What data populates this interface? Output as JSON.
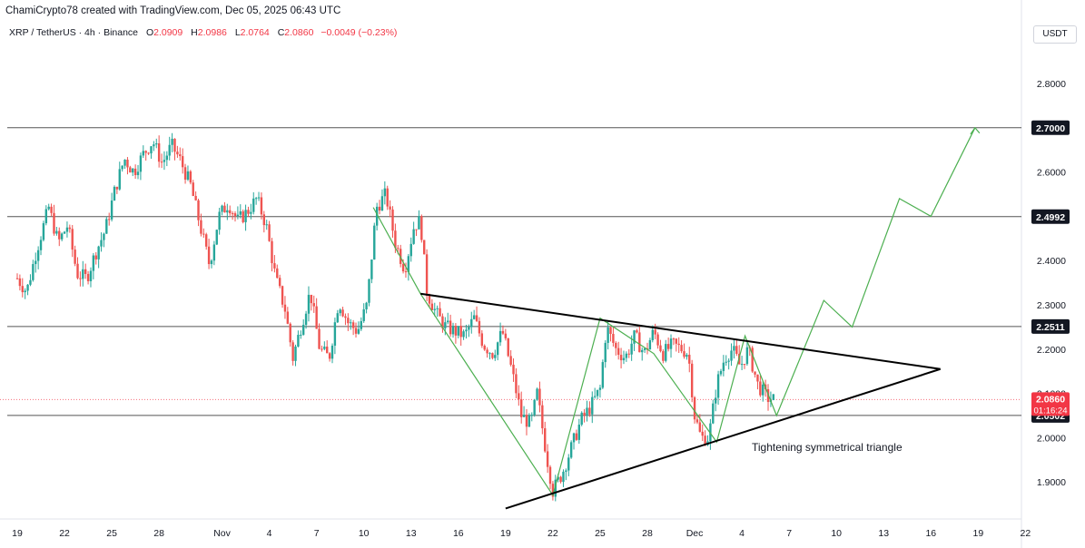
{
  "header": {
    "attribution": "ChamiCrypto78 created with TradingView.com, Dec 05, 2025 06:43 UTC"
  },
  "symbol": {
    "name": "XRP / TetherUS · 4h · Binance",
    "open_label": "O",
    "open": "2.0909",
    "high_label": "H",
    "high": "2.0986",
    "low_label": "L",
    "low": "2.0764",
    "close_label": "C",
    "close": "2.0860",
    "change": "−0.0049 (−0.23%)"
  },
  "currency": "USDT",
  "colors": {
    "up": "#26a69a",
    "down": "#ef5350",
    "projection": "#4caf50",
    "triangle": "#000000",
    "level_line": "#555555",
    "current_price": "#f23645"
  },
  "chart_data": {
    "type": "candlestick",
    "ylim": [
      1.83,
      2.87
    ],
    "y_ticks": [
      "2.8000",
      "2.6000",
      "2.5000",
      "2.4000",
      "2.3000",
      "2.2000",
      "2.1000",
      "2.0000",
      "1.9000"
    ],
    "x_ticks": [
      {
        "label": "19",
        "day": 0
      },
      {
        "label": "22",
        "day": 3
      },
      {
        "label": "25",
        "day": 6
      },
      {
        "label": "28",
        "day": 9
      },
      {
        "label": "Nov",
        "day": 13
      },
      {
        "label": "4",
        "day": 16
      },
      {
        "label": "7",
        "day": 19
      },
      {
        "label": "10",
        "day": 22
      },
      {
        "label": "13",
        "day": 25
      },
      {
        "label": "16",
        "day": 28
      },
      {
        "label": "19",
        "day": 31
      },
      {
        "label": "22",
        "day": 34
      },
      {
        "label": "25",
        "day": 37
      },
      {
        "label": "28",
        "day": 40
      },
      {
        "label": "Dec",
        "day": 43
      },
      {
        "label": "4",
        "day": 46
      },
      {
        "label": "7",
        "day": 49
      },
      {
        "label": "10",
        "day": 52
      },
      {
        "label": "13",
        "day": 55
      },
      {
        "label": "16",
        "day": 58
      },
      {
        "label": "19",
        "day": 61
      },
      {
        "label": "22",
        "day": 64
      }
    ],
    "horizontal_levels": [
      {
        "price": 2.7,
        "label": "2.7000"
      },
      {
        "price": 2.4992,
        "label": "2.4992"
      },
      {
        "price": 2.2511,
        "label": "2.2511"
      },
      {
        "price": 2.0502,
        "label": "2.0502"
      }
    ],
    "current_price": {
      "price": 2.086,
      "label": "2.0860",
      "countdown": "01:16:24"
    },
    "price_path": [
      [
        0,
        2.36
      ],
      [
        0.6,
        2.33
      ],
      [
        1.2,
        2.42
      ],
      [
        2.0,
        2.52
      ],
      [
        2.6,
        2.44
      ],
      [
        3.2,
        2.48
      ],
      [
        3.8,
        2.37
      ],
      [
        4.4,
        2.36
      ],
      [
        5.0,
        2.42
      ],
      [
        5.6,
        2.47
      ],
      [
        6.2,
        2.56
      ],
      [
        6.8,
        2.63
      ],
      [
        7.4,
        2.6
      ],
      [
        8.0,
        2.64
      ],
      [
        8.6,
        2.67
      ],
      [
        9.2,
        2.62
      ],
      [
        9.8,
        2.66
      ],
      [
        10.3,
        2.63
      ],
      [
        11.0,
        2.57
      ],
      [
        11.6,
        2.48
      ],
      [
        12.2,
        2.39
      ],
      [
        12.8,
        2.5
      ],
      [
        13.4,
        2.53
      ],
      [
        14.0,
        2.49
      ],
      [
        14.6,
        2.51
      ],
      [
        15.2,
        2.54
      ],
      [
        15.8,
        2.48
      ],
      [
        16.4,
        2.36
      ],
      [
        17.0,
        2.29
      ],
      [
        17.5,
        2.18
      ],
      [
        18.0,
        2.25
      ],
      [
        18.6,
        2.33
      ],
      [
        19.2,
        2.2
      ],
      [
        19.8,
        2.18
      ],
      [
        20.4,
        2.31
      ],
      [
        21.0,
        2.26
      ],
      [
        21.6,
        2.24
      ],
      [
        22.2,
        2.3
      ],
      [
        22.8,
        2.52
      ],
      [
        23.4,
        2.55
      ],
      [
        24.0,
        2.44
      ],
      [
        24.6,
        2.38
      ],
      [
        25.2,
        2.48
      ],
      [
        25.6,
        2.49
      ],
      [
        26.0,
        2.33
      ],
      [
        26.6,
        2.28
      ],
      [
        27.2,
        2.25
      ],
      [
        27.8,
        2.24
      ],
      [
        28.4,
        2.23
      ],
      [
        29.0,
        2.27
      ],
      [
        29.6,
        2.21
      ],
      [
        30.2,
        2.19
      ],
      [
        30.8,
        2.24
      ],
      [
        31.4,
        2.15
      ],
      [
        32.0,
        2.05
      ],
      [
        32.6,
        2.03
      ],
      [
        33.0,
        2.1
      ],
      [
        33.6,
        1.96
      ],
      [
        34.0,
        1.88
      ],
      [
        34.6,
        1.92
      ],
      [
        35.2,
        1.98
      ],
      [
        35.8,
        2.04
      ],
      [
        36.4,
        2.07
      ],
      [
        37.0,
        2.11
      ],
      [
        37.4,
        2.25
      ],
      [
        38.0,
        2.2
      ],
      [
        38.6,
        2.18
      ],
      [
        39.2,
        2.23
      ],
      [
        39.8,
        2.19
      ],
      [
        40.4,
        2.24
      ],
      [
        41.0,
        2.19
      ],
      [
        41.6,
        2.21
      ],
      [
        42.2,
        2.2
      ],
      [
        42.6,
        2.19
      ],
      [
        43.0,
        2.05
      ],
      [
        43.4,
        2.0
      ],
      [
        43.9,
        2.0
      ],
      [
        44.4,
        2.12
      ],
      [
        44.9,
        2.18
      ],
      [
        45.4,
        2.2
      ],
      [
        45.9,
        2.16
      ],
      [
        46.4,
        2.2
      ],
      [
        47.0,
        2.12
      ],
      [
        47.6,
        2.09
      ],
      [
        48.0,
        2.086
      ]
    ],
    "annotations": {
      "triangle_label": "Tightening symmetrical triangle",
      "upper_trendline": [
        [
          25.6,
          2.325
        ],
        [
          58.6,
          2.155
        ]
      ],
      "lower_trendline": [
        [
          31.0,
          1.84
        ],
        [
          58.6,
          2.155
        ]
      ],
      "wave_path": [
        [
          22.6,
          2.52
        ],
        [
          25.6,
          2.325
        ],
        [
          34.0,
          1.87
        ],
        [
          37.0,
          2.27
        ],
        [
          40.4,
          2.19
        ],
        [
          44.4,
          1.99
        ],
        [
          46.2,
          2.23
        ],
        [
          48.2,
          2.05
        ],
        [
          51.2,
          2.31
        ],
        [
          53.0,
          2.25
        ],
        [
          56.0,
          2.54
        ],
        [
          58.0,
          2.5
        ],
        [
          60.8,
          2.7
        ]
      ]
    }
  }
}
